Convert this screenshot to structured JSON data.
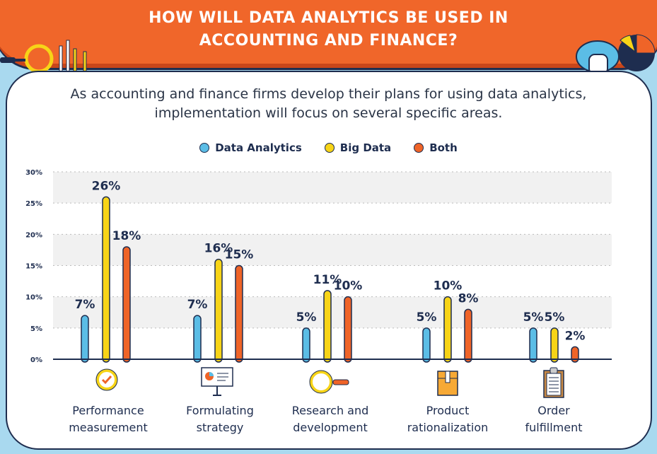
{
  "header": {
    "title_line1": "HOW WILL DATA ANALYTICS BE USED IN",
    "title_line2": "ACCOUNTING AND FINANCE?"
  },
  "subtitle_line1": "As accounting and finance firms develop their plans for using data analytics,",
  "subtitle_line2": "implementation will focus on several specific areas.",
  "colors": {
    "data_analytics": "#5bbde6",
    "big_data": "#f7d417",
    "both": "#ef6428",
    "header": "#f0662a",
    "navy": "#1e2d4f"
  },
  "chart_data": {
    "type": "bar",
    "categories": [
      "Performance measurement",
      "Formulating strategy",
      "Research and development",
      "Product rationalization",
      "Order fulfillment"
    ],
    "category_lines": [
      [
        "Performance",
        "measurement"
      ],
      [
        "Formulating",
        "strategy"
      ],
      [
        "Research and",
        "development"
      ],
      [
        "Product",
        "rationalization"
      ],
      [
        "Order",
        "fulfillment"
      ]
    ],
    "series": [
      {
        "name": "Data Analytics",
        "values": [
          7,
          7,
          5,
          5,
          5
        ]
      },
      {
        "name": "Big Data",
        "values": [
          26,
          16,
          11,
          10,
          5
        ]
      },
      {
        "name": "Both",
        "values": [
          18,
          15,
          10,
          8,
          2
        ]
      }
    ],
    "ylim": [
      0,
      30
    ],
    "yticks": [
      "0%",
      "5%",
      "10%",
      "15%",
      "20%",
      "25%",
      "30%"
    ],
    "legend_position": "top-center",
    "grid": true
  },
  "icons": [
    "check-badge-icon",
    "presentation-board-icon",
    "magnifier-icon",
    "box-icon",
    "clipboard-icon"
  ]
}
